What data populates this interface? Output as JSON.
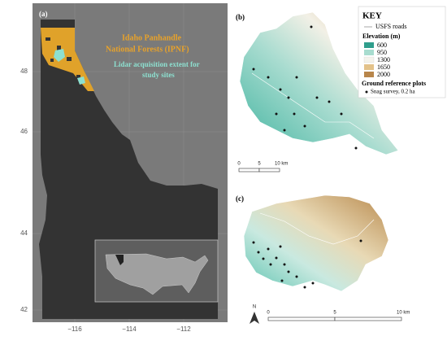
{
  "panel_a": {
    "label": "(a)",
    "forest_label": [
      "Idaho Panhandle",
      "National Forests (IPNF)"
    ],
    "lidar_label": [
      "Lidar acquisition extent for",
      "study sites"
    ],
    "lat_ticks": [
      "48",
      "46",
      "44",
      "42"
    ],
    "lon_ticks": [
      "−116",
      "−114",
      "−112"
    ]
  },
  "panel_b": {
    "label": "(b)",
    "scale": [
      "0",
      "5",
      "10 km"
    ]
  },
  "key": {
    "title": "KEY",
    "roads": "USFS roads",
    "elevation_title": "Elevation (m)",
    "elevation_classes": [
      "600",
      "950",
      "1300",
      "1650",
      "2000"
    ],
    "plots_title": "Ground reference plots",
    "plots_item": "Snag survey, 0.2 ha"
  },
  "panel_c": {
    "label": "(c)",
    "scale": [
      "0",
      "5",
      "10 km"
    ],
    "north": "N"
  }
}
